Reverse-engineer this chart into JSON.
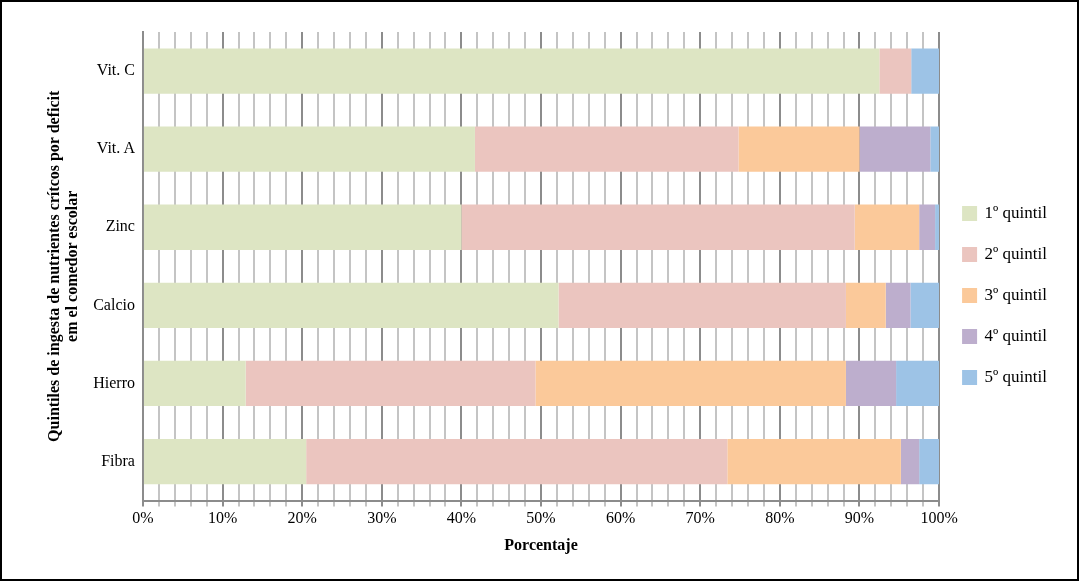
{
  "chart_data": {
    "type": "bar",
    "orientation": "horizontal",
    "stacked": true,
    "xlabel": "Porcentaje",
    "ylabel": "Quintiles de ingesta de nutrientes crítcos por deficit em el comedor escolar",
    "categories": [
      "Vit. C",
      "Vit. A",
      "Zinc",
      "Calcio",
      "Hierro",
      "Fibra"
    ],
    "series": [
      {
        "name": "1º quintil",
        "color": "#dde5c3",
        "values": [
          92.5,
          41.7,
          40,
          52.2,
          12.9,
          20.5
        ]
      },
      {
        "name": "2º quintil",
        "color": "#ebc5bf",
        "values": [
          4,
          33.1,
          49.4,
          36.1,
          36.4,
          52.9
        ]
      },
      {
        "name": "3º quintil",
        "color": "#fbc99a",
        "values": [
          0,
          15.2,
          8.1,
          5,
          39,
          21.8
        ]
      },
      {
        "name": "4º quintil",
        "color": "#bdaecd",
        "values": [
          0,
          8.9,
          2,
          3.1,
          6.3,
          2.3
        ]
      },
      {
        "name": "5º quintil",
        "color": "#9dc3e6",
        "values": [
          3.5,
          1.1,
          0.5,
          3.6,
          5.4,
          2.5
        ]
      }
    ],
    "xlim": [
      0,
      100
    ],
    "xticks": [
      {
        "value": 0,
        "label": "0%"
      },
      {
        "value": 2,
        "label": null
      },
      {
        "value": 4,
        "label": null
      },
      {
        "value": 6,
        "label": null
      },
      {
        "value": 8,
        "label": null
      },
      {
        "value": 10,
        "label": "10%"
      },
      {
        "value": 12,
        "label": null
      },
      {
        "value": 14,
        "label": null
      },
      {
        "value": 16,
        "label": null
      },
      {
        "value": 18,
        "label": null
      },
      {
        "value": 20,
        "label": "20%"
      },
      {
        "value": 22,
        "label": null
      },
      {
        "value": 24,
        "label": null
      },
      {
        "value": 26,
        "label": null
      },
      {
        "value": 28,
        "label": null
      },
      {
        "value": 30,
        "label": "30%"
      },
      {
        "value": 32,
        "label": null
      },
      {
        "value": 34,
        "label": null
      },
      {
        "value": 36,
        "label": null
      },
      {
        "value": 38,
        "label": null
      },
      {
        "value": 40,
        "label": "40%"
      },
      {
        "value": 42,
        "label": null
      },
      {
        "value": 44,
        "label": null
      },
      {
        "value": 46,
        "label": null
      },
      {
        "value": 48,
        "label": null
      },
      {
        "value": 50,
        "label": "50%"
      },
      {
        "value": 52,
        "label": null
      },
      {
        "value": 54,
        "label": null
      },
      {
        "value": 56,
        "label": null
      },
      {
        "value": 58,
        "label": null
      },
      {
        "value": 60,
        "label": "60%"
      },
      {
        "value": 62,
        "label": null
      },
      {
        "value": 64,
        "label": null
      },
      {
        "value": 66,
        "label": null
      },
      {
        "value": 68,
        "label": null
      },
      {
        "value": 70,
        "label": "70%"
      },
      {
        "value": 72,
        "label": null
      },
      {
        "value": 74,
        "label": null
      },
      {
        "value": 76,
        "label": null
      },
      {
        "value": 78,
        "label": null
      },
      {
        "value": 80,
        "label": "80%"
      },
      {
        "value": 82,
        "label": null
      },
      {
        "value": 84,
        "label": null
      },
      {
        "value": 86,
        "label": null
      },
      {
        "value": 88,
        "label": null
      },
      {
        "value": 90,
        "label": "90%"
      },
      {
        "value": 92,
        "label": null
      },
      {
        "value": 94,
        "label": null
      },
      {
        "value": 96,
        "label": null
      },
      {
        "value": 98,
        "label": null
      },
      {
        "value": 100,
        "label": "100%"
      }
    ],
    "grid": "x",
    "legend": "right"
  }
}
